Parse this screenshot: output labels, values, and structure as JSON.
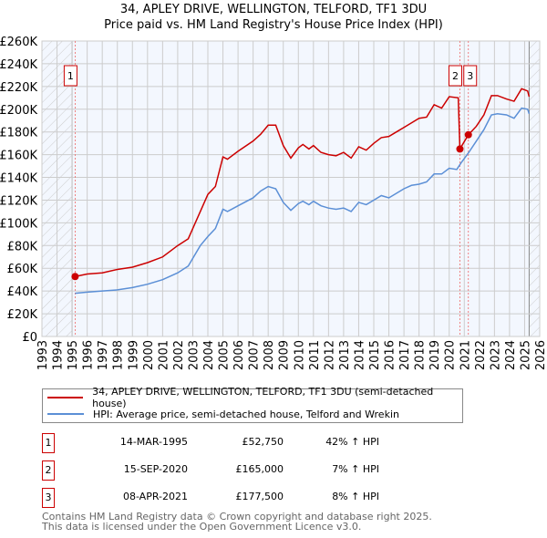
{
  "chart_data": {
    "type": "line",
    "title": "34, APLEY DRIVE, WELLINGTON, TELFORD, TF1 3DU",
    "subtitle": "Price paid vs. HM Land Registry's House Price Index (HPI)",
    "xlim": [
      1993,
      2026
    ],
    "ylim": [
      0,
      260000
    ],
    "x_ticks": [
      "1993",
      "1994",
      "1995",
      "1996",
      "1997",
      "1998",
      "1999",
      "2000",
      "2001",
      "2002",
      "2003",
      "2004",
      "2005",
      "2006",
      "2007",
      "2008",
      "2009",
      "2010",
      "2011",
      "2012",
      "2013",
      "2014",
      "2015",
      "2016",
      "2017",
      "2018",
      "2019",
      "2020",
      "2021",
      "2022",
      "2023",
      "2024",
      "2025",
      "2026"
    ],
    "y_ticks": [
      {
        "v": 0,
        "label": "£0"
      },
      {
        "v": 20000,
        "label": "£20K"
      },
      {
        "v": 40000,
        "label": "£40K"
      },
      {
        "v": 60000,
        "label": "£60K"
      },
      {
        "v": 80000,
        "label": "£80K"
      },
      {
        "v": 100000,
        "label": "£100K"
      },
      {
        "v": 120000,
        "label": "£120K"
      },
      {
        "v": 140000,
        "label": "£140K"
      },
      {
        "v": 160000,
        "label": "£160K"
      },
      {
        "v": 180000,
        "label": "£180K"
      },
      {
        "v": 200000,
        "label": "£200K"
      },
      {
        "v": 220000,
        "label": "£220K"
      },
      {
        "v": 240000,
        "label": "£240K"
      },
      {
        "v": 260000,
        "label": "£260K"
      }
    ],
    "grid": true,
    "hatched_ranges": [
      [
        1993,
        1995
      ],
      [
        2025.3,
        2026
      ]
    ],
    "series": [
      {
        "name": "34, APLEY DRIVE, WELLINGTON, TELFORD, TF1 3DU (semi-detached house)",
        "color": "#cc0000",
        "points": [
          [
            1995.2,
            52750
          ],
          [
            1996,
            55000
          ],
          [
            1997,
            56000
          ],
          [
            1998,
            59000
          ],
          [
            1999,
            61000
          ],
          [
            2000,
            65000
          ],
          [
            2001,
            70000
          ],
          [
            2002,
            80000
          ],
          [
            2002.7,
            86000
          ],
          [
            2003.5,
            110000
          ],
          [
            2004,
            125000
          ],
          [
            2004.5,
            132000
          ],
          [
            2005,
            158000
          ],
          [
            2005.3,
            156000
          ],
          [
            2006,
            163000
          ],
          [
            2007,
            172000
          ],
          [
            2007.5,
            178000
          ],
          [
            2008,
            186000
          ],
          [
            2008.5,
            186000
          ],
          [
            2009,
            168000
          ],
          [
            2009.5,
            157000
          ],
          [
            2010,
            166000
          ],
          [
            2010.3,
            169000
          ],
          [
            2010.7,
            165000
          ],
          [
            2011,
            168000
          ],
          [
            2011.5,
            162000
          ],
          [
            2012,
            160000
          ],
          [
            2012.5,
            159000
          ],
          [
            2013,
            162000
          ],
          [
            2013.5,
            157000
          ],
          [
            2014,
            167000
          ],
          [
            2014.5,
            164000
          ],
          [
            2015,
            170000
          ],
          [
            2015.5,
            175000
          ],
          [
            2016,
            176000
          ],
          [
            2016.5,
            180000
          ],
          [
            2017,
            184000
          ],
          [
            2017.5,
            188000
          ],
          [
            2018,
            192000
          ],
          [
            2018.5,
            193000
          ],
          [
            2019,
            204000
          ],
          [
            2019.5,
            201000
          ],
          [
            2020,
            211000
          ],
          [
            2020.6,
            210000
          ],
          [
            2020.71,
            165000
          ],
          [
            2021.27,
            177500
          ],
          [
            2021.8,
            185000
          ],
          [
            2022.3,
            195000
          ],
          [
            2022.8,
            212000
          ],
          [
            2023.2,
            212000
          ],
          [
            2023.8,
            209000
          ],
          [
            2024.3,
            207000
          ],
          [
            2024.8,
            218000
          ],
          [
            2025.2,
            216000
          ],
          [
            2025.3,
            211000
          ]
        ]
      },
      {
        "name": "HPI: Average price, semi-detached house, Telford and Wrekin",
        "color": "#5b8fd6",
        "points": [
          [
            1995.2,
            38000
          ],
          [
            1996,
            39000
          ],
          [
            1997,
            40000
          ],
          [
            1998,
            41000
          ],
          [
            1999,
            43000
          ],
          [
            2000,
            46000
          ],
          [
            2001,
            50000
          ],
          [
            2002,
            56000
          ],
          [
            2002.7,
            62000
          ],
          [
            2003.5,
            80000
          ],
          [
            2004,
            88000
          ],
          [
            2004.5,
            95000
          ],
          [
            2005,
            112000
          ],
          [
            2005.3,
            110000
          ],
          [
            2006,
            115000
          ],
          [
            2007,
            122000
          ],
          [
            2007.5,
            128000
          ],
          [
            2008,
            132000
          ],
          [
            2008.5,
            130000
          ],
          [
            2009,
            118000
          ],
          [
            2009.5,
            111000
          ],
          [
            2010,
            117000
          ],
          [
            2010.3,
            119000
          ],
          [
            2010.7,
            116000
          ],
          [
            2011,
            119000
          ],
          [
            2011.5,
            115000
          ],
          [
            2012,
            113000
          ],
          [
            2012.5,
            112000
          ],
          [
            2013,
            113000
          ],
          [
            2013.5,
            110000
          ],
          [
            2014,
            118000
          ],
          [
            2014.5,
            116000
          ],
          [
            2015,
            120000
          ],
          [
            2015.5,
            124000
          ],
          [
            2016,
            122000
          ],
          [
            2016.5,
            126000
          ],
          [
            2017,
            130000
          ],
          [
            2017.5,
            133000
          ],
          [
            2018,
            134000
          ],
          [
            2018.5,
            136000
          ],
          [
            2019,
            143000
          ],
          [
            2019.5,
            143000
          ],
          [
            2020,
            148000
          ],
          [
            2020.5,
            147000
          ],
          [
            2020.8,
            153000
          ],
          [
            2021.3,
            162000
          ],
          [
            2021.8,
            172000
          ],
          [
            2022.3,
            182000
          ],
          [
            2022.8,
            195000
          ],
          [
            2023.2,
            196000
          ],
          [
            2023.8,
            195000
          ],
          [
            2024.3,
            192000
          ],
          [
            2024.8,
            201000
          ],
          [
            2025.2,
            200000
          ],
          [
            2025.3,
            196000
          ]
        ]
      }
    ],
    "sales": [
      {
        "label": "1",
        "x": 1995.2,
        "y": 52750
      },
      {
        "label": "2",
        "x": 2020.71,
        "y": 165000
      },
      {
        "label": "3",
        "x": 2021.27,
        "y": 177500
      }
    ]
  },
  "table": [
    {
      "num": "1",
      "date": "14-MAR-1995",
      "price": "£52,750",
      "hpi": "42% ↑ HPI"
    },
    {
      "num": "2",
      "date": "15-SEP-2020",
      "price": "£165,000",
      "hpi": "7% ↑ HPI"
    },
    {
      "num": "3",
      "date": "08-APR-2021",
      "price": "£177,500",
      "hpi": "8% ↑ HPI"
    }
  ],
  "footer": {
    "line1": "Contains HM Land Registry data © Crown copyright and database right 2025.",
    "line2": "This data is licensed under the Open Government Licence v3.0."
  }
}
